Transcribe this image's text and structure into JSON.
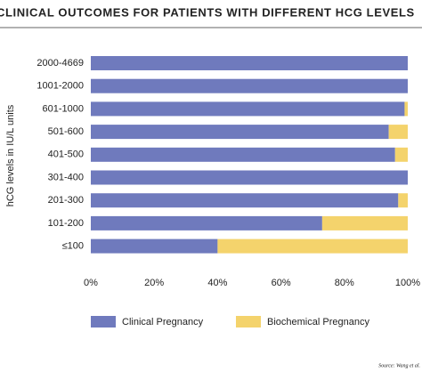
{
  "chart_data": {
    "type": "stacked-bar-horizontal",
    "title": "CLINICAL OUTCOMES FOR PATIENTS WITH DIFFERENT HCG LEVELS",
    "y_label": "hCG levels in IU/L units",
    "source": "Source: Wang et al.",
    "categories": [
      "2000-4669",
      "1001-2000",
      "601-1000",
      "501-600",
      "401-500",
      "301-400",
      "201-300",
      "101-200",
      "≤100"
    ],
    "series": [
      {
        "name": "Clinical Pregnancy",
        "color": "#6f7abd",
        "values": [
          100,
          100,
          99,
          94,
          96,
          100,
          97,
          73,
          40
        ]
      },
      {
        "name": "Biochemical Pregnancy",
        "color": "#f4d36c",
        "values": [
          0,
          0,
          1,
          6,
          4,
          0,
          3,
          27,
          60
        ]
      }
    ],
    "xlim": [
      0,
      100
    ],
    "xticks": [
      {
        "value": 0,
        "label": "0%"
      },
      {
        "value": 20,
        "label": "20%"
      },
      {
        "value": 40,
        "label": "40%"
      },
      {
        "value": 60,
        "label": "60%"
      },
      {
        "value": 80,
        "label": "80%"
      },
      {
        "value": 100,
        "label": "100%"
      }
    ]
  }
}
